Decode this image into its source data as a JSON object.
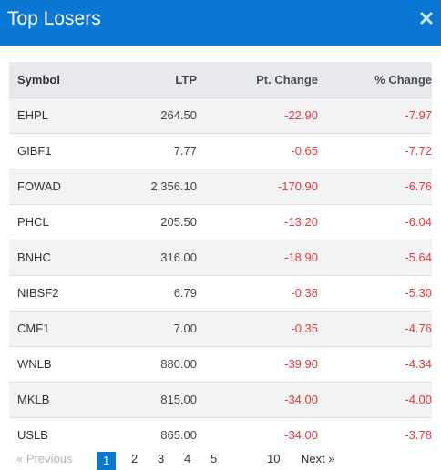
{
  "dialog": {
    "title": "Top Losers",
    "close_icon": "close-icon"
  },
  "table": {
    "headers": [
      "Symbol",
      "LTP",
      "Pt. Change",
      "% Change"
    ],
    "rows": [
      {
        "symbol": "EHPL",
        "ltp": "264.50",
        "pt_change": "-22.90",
        "pct_change": "-7.97"
      },
      {
        "symbol": "GIBF1",
        "ltp": "7.77",
        "pt_change": "-0.65",
        "pct_change": "-7.72"
      },
      {
        "symbol": "FOWAD",
        "ltp": "2,356.10",
        "pt_change": "-170.90",
        "pct_change": "-6.76"
      },
      {
        "symbol": "PHCL",
        "ltp": "205.50",
        "pt_change": "-13.20",
        "pct_change": "-6.04"
      },
      {
        "symbol": "BNHC",
        "ltp": "316.00",
        "pt_change": "-18.90",
        "pct_change": "-5.64"
      },
      {
        "symbol": "NIBSF2",
        "ltp": "6.79",
        "pt_change": "-0.38",
        "pct_change": "-5.30"
      },
      {
        "symbol": "CMF1",
        "ltp": "7.00",
        "pt_change": "-0.35",
        "pct_change": "-4.76"
      },
      {
        "symbol": "WNLB",
        "ltp": "880.00",
        "pt_change": "-39.90",
        "pct_change": "-4.34"
      },
      {
        "symbol": "MKLB",
        "ltp": "815.00",
        "pt_change": "-34.00",
        "pct_change": "-4.00"
      },
      {
        "symbol": "USLB",
        "ltp": "865.00",
        "pt_change": "-34.00",
        "pct_change": "-3.78"
      }
    ]
  },
  "pagination": {
    "previous": "« Previous",
    "pages": [
      "1",
      "2",
      "3",
      "4",
      "5"
    ],
    "current": "1",
    "last_page": "10",
    "next": "Next »"
  },
  "colors": {
    "header_bg": "#0a78d2",
    "negative": "#e23a3a"
  }
}
